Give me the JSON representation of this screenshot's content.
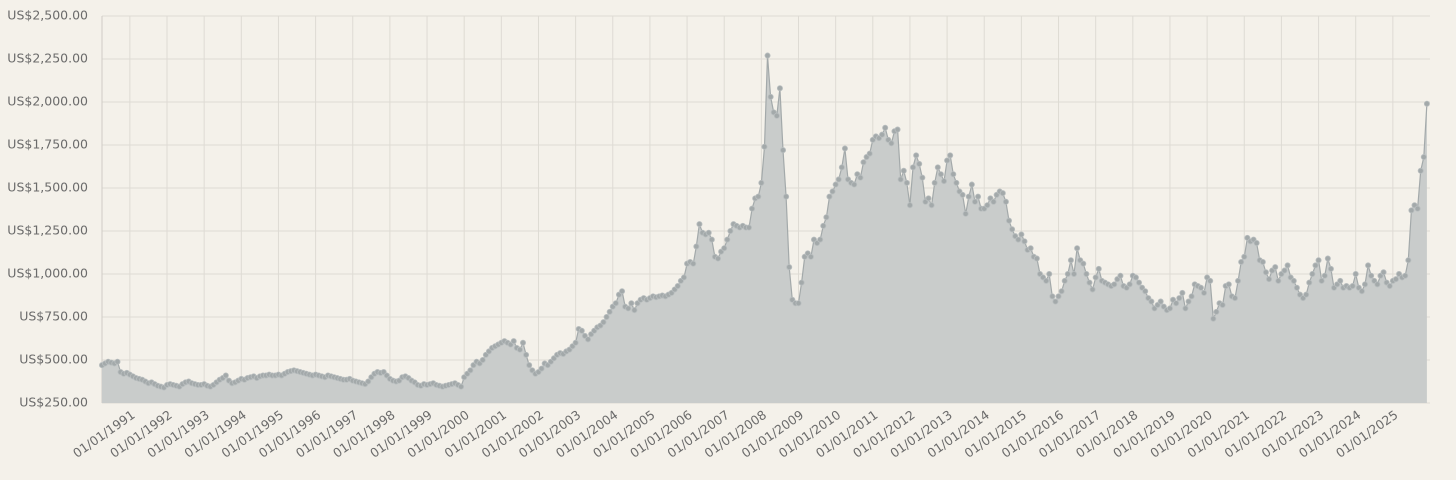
{
  "chart_data": {
    "type": "area",
    "x": [
      "01/04/1990",
      "01/05/1990",
      "01/06/1990",
      "01/07/1990",
      "01/08/1990",
      "01/09/1990",
      "01/10/1990",
      "01/11/1990",
      "01/12/1990",
      "01/01/1991",
      "01/02/1991",
      "01/03/1991",
      "01/04/1991",
      "01/05/1991",
      "01/06/1991",
      "01/07/1991",
      "01/08/1991",
      "01/09/1991",
      "01/10/1991",
      "01/11/1991",
      "01/12/1991",
      "01/01/1992",
      "01/02/1992",
      "01/03/1992",
      "01/04/1992",
      "01/05/1992",
      "01/06/1992",
      "01/07/1992",
      "01/08/1992",
      "01/09/1992",
      "01/10/1992",
      "01/11/1992",
      "01/12/1992",
      "01/01/1993",
      "01/02/1993",
      "01/03/1993",
      "01/04/1993",
      "01/05/1993",
      "01/06/1993",
      "01/07/1993",
      "01/08/1993",
      "01/09/1993",
      "01/10/1993",
      "01/11/1993",
      "01/12/1993",
      "01/01/1994",
      "01/02/1994",
      "01/03/1994",
      "01/04/1994",
      "01/05/1994",
      "01/06/1994",
      "01/07/1994",
      "01/08/1994",
      "01/09/1994",
      "01/10/1994",
      "01/11/1994",
      "01/12/1994",
      "01/01/1995",
      "01/02/1995",
      "01/03/1995",
      "01/04/1995",
      "01/05/1995",
      "01/06/1995",
      "01/07/1995",
      "01/08/1995",
      "01/09/1995",
      "01/10/1995",
      "01/11/1995",
      "01/12/1995",
      "01/01/1996",
      "01/02/1996",
      "01/03/1996",
      "01/04/1996",
      "01/05/1996",
      "01/06/1996",
      "01/07/1996",
      "01/08/1996",
      "01/09/1996",
      "01/10/1996",
      "01/11/1996",
      "01/12/1996",
      "01/01/1997",
      "01/02/1997",
      "01/03/1997",
      "01/04/1997",
      "01/05/1997",
      "01/06/1997",
      "01/07/1997",
      "01/08/1997",
      "01/09/1997",
      "01/10/1997",
      "01/11/1997",
      "01/12/1997",
      "01/01/1998",
      "01/02/1998",
      "01/03/1998",
      "01/04/1998",
      "01/05/1998",
      "01/06/1998",
      "01/07/1998",
      "01/08/1998",
      "01/09/1998",
      "01/10/1998",
      "01/11/1998",
      "01/12/1998",
      "01/01/1999",
      "01/02/1999",
      "01/03/1999",
      "01/04/1999",
      "01/05/1999",
      "01/06/1999",
      "01/07/1999",
      "01/08/1999",
      "01/09/1999",
      "01/10/1999",
      "01/11/1999",
      "01/12/1999",
      "01/01/2000",
      "01/02/2000",
      "01/03/2000",
      "01/04/2000",
      "01/05/2000",
      "01/06/2000",
      "01/07/2000",
      "01/08/2000",
      "01/09/2000",
      "01/10/2000",
      "01/11/2000",
      "01/12/2000",
      "01/01/2001",
      "01/02/2001",
      "01/03/2001",
      "01/04/2001",
      "01/05/2001",
      "01/06/2001",
      "01/07/2001",
      "01/08/2001",
      "01/09/2001",
      "01/10/2001",
      "01/11/2001",
      "01/12/2001",
      "01/01/2002",
      "01/02/2002",
      "01/03/2002",
      "01/04/2002",
      "01/05/2002",
      "01/06/2002",
      "01/07/2002",
      "01/08/2002",
      "01/09/2002",
      "01/10/2002",
      "01/11/2002",
      "01/12/2002",
      "01/01/2003",
      "01/02/2003",
      "01/03/2003",
      "01/04/2003",
      "01/05/2003",
      "01/06/2003",
      "01/07/2003",
      "01/08/2003",
      "01/09/2003",
      "01/10/2003",
      "01/11/2003",
      "01/12/2003",
      "01/01/2004",
      "01/02/2004",
      "01/03/2004",
      "01/04/2004",
      "01/05/2004",
      "01/06/2004",
      "01/07/2004",
      "01/08/2004",
      "01/09/2004",
      "01/10/2004",
      "01/11/2004",
      "01/12/2004",
      "01/01/2005",
      "01/02/2005",
      "01/03/2005",
      "01/04/2005",
      "01/05/2005",
      "01/06/2005",
      "01/07/2005",
      "01/08/2005",
      "01/09/2005",
      "01/10/2005",
      "01/11/2005",
      "01/12/2005",
      "01/01/2006",
      "01/02/2006",
      "01/03/2006",
      "01/04/2006",
      "01/05/2006",
      "01/06/2006",
      "01/07/2006",
      "01/08/2006",
      "01/09/2006",
      "01/10/2006",
      "01/11/2006",
      "01/12/2006",
      "01/01/2007",
      "01/02/2007",
      "01/03/2007",
      "01/04/2007",
      "01/05/2007",
      "01/06/2007",
      "01/07/2007",
      "01/08/2007",
      "01/09/2007",
      "01/10/2007",
      "01/11/2007",
      "01/12/2007",
      "01/01/2008",
      "01/02/2008",
      "01/03/2008",
      "01/04/2008",
      "01/05/2008",
      "01/06/2008",
      "01/07/2008",
      "01/08/2008",
      "01/09/2008",
      "01/10/2008",
      "01/11/2008",
      "01/12/2008",
      "01/01/2009",
      "01/02/2009",
      "01/03/2009",
      "01/04/2009",
      "01/05/2009",
      "01/06/2009",
      "01/07/2009",
      "01/08/2009",
      "01/09/2009",
      "01/10/2009",
      "01/11/2009",
      "01/12/2009",
      "01/01/2010",
      "01/02/2010",
      "01/03/2010",
      "01/04/2010",
      "01/05/2010",
      "01/06/2010",
      "01/07/2010",
      "01/08/2010",
      "01/09/2010",
      "01/10/2010",
      "01/11/2010",
      "01/12/2010",
      "01/01/2011",
      "01/02/2011",
      "01/03/2011",
      "01/04/2011",
      "01/05/2011",
      "01/06/2011",
      "01/07/2011",
      "01/08/2011",
      "01/09/2011",
      "01/10/2011",
      "01/11/2011",
      "01/12/2011",
      "01/01/2012",
      "01/02/2012",
      "01/03/2012",
      "01/04/2012",
      "01/05/2012",
      "01/06/2012",
      "01/07/2012",
      "01/08/2012",
      "01/09/2012",
      "01/10/2012",
      "01/11/2012",
      "01/12/2012",
      "01/01/2013",
      "01/02/2013",
      "01/03/2013",
      "01/04/2013",
      "01/05/2013",
      "01/06/2013",
      "01/07/2013",
      "01/08/2013",
      "01/09/2013",
      "01/10/2013",
      "01/11/2013",
      "01/12/2013",
      "01/01/2014",
      "01/02/2014",
      "01/03/2014",
      "01/04/2014",
      "01/05/2014",
      "01/06/2014",
      "01/07/2014",
      "01/08/2014",
      "01/09/2014",
      "01/10/2014",
      "01/11/2014",
      "01/12/2014",
      "01/01/2015",
      "01/02/2015",
      "01/03/2015",
      "01/04/2015",
      "01/05/2015",
      "01/06/2015",
      "01/07/2015",
      "01/08/2015",
      "01/09/2015",
      "01/10/2015",
      "01/11/2015",
      "01/12/2015",
      "01/01/2016",
      "01/02/2016",
      "01/03/2016",
      "01/04/2016",
      "01/05/2016",
      "01/06/2016",
      "01/07/2016",
      "01/08/2016",
      "01/09/2016",
      "01/10/2016",
      "01/11/2016",
      "01/12/2016",
      "01/01/2017",
      "01/02/2017",
      "01/03/2017",
      "01/04/2017",
      "01/05/2017",
      "01/06/2017",
      "01/07/2017",
      "01/08/2017",
      "01/09/2017",
      "01/10/2017",
      "01/11/2017",
      "01/12/2017",
      "01/01/2018",
      "01/02/2018",
      "01/03/2018",
      "01/04/2018",
      "01/05/2018",
      "01/06/2018",
      "01/07/2018",
      "01/08/2018",
      "01/09/2018",
      "01/10/2018",
      "01/11/2018",
      "01/12/2018",
      "01/01/2019",
      "01/02/2019",
      "01/03/2019",
      "01/04/2019",
      "01/05/2019",
      "01/06/2019",
      "01/07/2019",
      "01/08/2019",
      "01/09/2019",
      "01/10/2019",
      "01/11/2019",
      "01/12/2019",
      "01/01/2020",
      "01/02/2020",
      "01/03/2020",
      "01/04/2020",
      "01/05/2020",
      "01/06/2020",
      "01/07/2020",
      "01/08/2020",
      "01/09/2020",
      "01/10/2020",
      "01/11/2020",
      "01/12/2020",
      "01/01/2021",
      "01/02/2021",
      "01/03/2021",
      "01/04/2021",
      "01/05/2021",
      "01/06/2021",
      "01/07/2021",
      "01/08/2021",
      "01/09/2021",
      "01/10/2021",
      "01/11/2021",
      "01/12/2021",
      "01/01/2022",
      "01/02/2022",
      "01/03/2022",
      "01/04/2022",
      "01/05/2022",
      "01/06/2022",
      "01/07/2022",
      "01/08/2022",
      "01/09/2022",
      "01/10/2022",
      "01/11/2022",
      "01/12/2022",
      "01/01/2023",
      "01/02/2023",
      "01/03/2023",
      "01/04/2023",
      "01/05/2023",
      "01/06/2023",
      "01/07/2023",
      "01/08/2023",
      "01/09/2023",
      "01/10/2023",
      "01/11/2023",
      "01/12/2023",
      "01/01/2024",
      "01/02/2024",
      "01/03/2024",
      "01/04/2024",
      "01/05/2024",
      "01/06/2024",
      "01/07/2024",
      "01/08/2024",
      "01/09/2024",
      "01/10/2024",
      "01/11/2024",
      "01/12/2024",
      "01/01/2025",
      "01/02/2025",
      "01/03/2025",
      "01/04/2025",
      "01/05/2025",
      "01/06/2025",
      "01/07/2025",
      "01/08/2025",
      "01/09/2025",
      "01/10/2025",
      "01/11/2025",
      "01/12/2025"
    ],
    "values": [
      470,
      480,
      490,
      485,
      480,
      490,
      430,
      420,
      425,
      415,
      405,
      395,
      390,
      385,
      375,
      365,
      370,
      360,
      350,
      345,
      340,
      355,
      360,
      355,
      350,
      345,
      360,
      370,
      375,
      365,
      360,
      355,
      355,
      360,
      350,
      345,
      355,
      370,
      385,
      395,
      410,
      380,
      365,
      370,
      380,
      390,
      385,
      395,
      400,
      405,
      395,
      405,
      410,
      410,
      415,
      410,
      410,
      415,
      410,
      420,
      430,
      435,
      440,
      435,
      430,
      425,
      420,
      415,
      410,
      415,
      410,
      405,
      400,
      410,
      405,
      400,
      395,
      390,
      385,
      385,
      390,
      380,
      375,
      370,
      365,
      360,
      375,
      400,
      420,
      430,
      425,
      430,
      410,
      390,
      380,
      375,
      380,
      400,
      405,
      395,
      380,
      370,
      355,
      350,
      360,
      355,
      360,
      365,
      355,
      350,
      345,
      350,
      355,
      360,
      365,
      355,
      345,
      400,
      420,
      440,
      470,
      490,
      480,
      500,
      530,
      550,
      570,
      580,
      590,
      600,
      610,
      600,
      590,
      610,
      570,
      560,
      600,
      530,
      470,
      440,
      420,
      430,
      450,
      480,
      470,
      490,
      510,
      530,
      540,
      535,
      550,
      560,
      580,
      600,
      680,
      670,
      640,
      620,
      650,
      670,
      690,
      700,
      720,
      750,
      780,
      810,
      830,
      880,
      900,
      810,
      800,
      830,
      790,
      830,
      850,
      860,
      850,
      860,
      870,
      865,
      870,
      875,
      870,
      880,
      890,
      910,
      930,
      960,
      980,
      1060,
      1070,
      1060,
      1160,
      1290,
      1240,
      1230,
      1240,
      1200,
      1100,
      1090,
      1130,
      1150,
      1200,
      1250,
      1290,
      1280,
      1270,
      1280,
      1270,
      1270,
      1380,
      1440,
      1450,
      1530,
      1740,
      2270,
      2030,
      1940,
      1920,
      2080,
      1720,
      1450,
      1040,
      850,
      830,
      830,
      950,
      1100,
      1120,
      1100,
      1200,
      1180,
      1200,
      1280,
      1330,
      1450,
      1480,
      1520,
      1550,
      1620,
      1730,
      1550,
      1530,
      1520,
      1580,
      1560,
      1650,
      1680,
      1700,
      1780,
      1800,
      1790,
      1810,
      1850,
      1780,
      1760,
      1830,
      1840,
      1550,
      1600,
      1530,
      1400,
      1620,
      1690,
      1640,
      1560,
      1420,
      1440,
      1400,
      1530,
      1620,
      1580,
      1540,
      1660,
      1690,
      1580,
      1530,
      1480,
      1460,
      1350,
      1450,
      1520,
      1420,
      1450,
      1380,
      1380,
      1400,
      1440,
      1420,
      1460,
      1480,
      1470,
      1420,
      1310,
      1260,
      1220,
      1200,
      1230,
      1190,
      1140,
      1150,
      1100,
      1090,
      1000,
      980,
      960,
      1000,
      870,
      840,
      870,
      900,
      960,
      1000,
      1080,
      1000,
      1150,
      1080,
      1060,
      1000,
      950,
      910,
      980,
      1030,
      960,
      950,
      940,
      930,
      940,
      970,
      990,
      930,
      920,
      940,
      990,
      980,
      950,
      920,
      900,
      860,
      840,
      800,
      820,
      840,
      810,
      790,
      800,
      850,
      830,
      860,
      890,
      800,
      840,
      870,
      940,
      930,
      920,
      890,
      980,
      960,
      740,
      780,
      830,
      820,
      930,
      940,
      870,
      860,
      960,
      1070,
      1100,
      1210,
      1190,
      1200,
      1180,
      1080,
      1070,
      1010,
      970,
      1020,
      1040,
      960,
      1000,
      1020,
      1050,
      980,
      960,
      920,
      880,
      860,
      880,
      950,
      1000,
      1050,
      1080,
      960,
      990,
      1090,
      1030,
      920,
      940,
      960,
      920,
      930,
      920,
      930,
      1000,
      920,
      900,
      940,
      1050,
      990,
      960,
      940,
      990,
      1010,
      950,
      930,
      960,
      970,
      1000,
      980,
      990,
      1080,
      1370,
      1400,
      1380,
      1600,
      1680,
      1990
    ],
    "color": "#a3a9aa",
    "area_color": "#c9cccb",
    "xlim": [
      "01/04/1990",
      "01/01/2026"
    ],
    "xticks": [
      "01/01/1991",
      "01/01/1992",
      "01/01/1993",
      "01/01/1994",
      "01/01/1995",
      "01/01/1996",
      "01/01/1997",
      "01/01/1998",
      "01/01/1999",
      "01/01/2000",
      "01/01/2001",
      "01/01/2002",
      "01/01/2003",
      "01/01/2004",
      "01/01/2005",
      "01/01/2006",
      "01/01/2007",
      "01/01/2008",
      "01/01/2009",
      "01/01/2010",
      "01/01/2011",
      "01/01/2012",
      "01/01/2013",
      "01/01/2014",
      "01/01/2015",
      "01/01/2016",
      "01/01/2017",
      "01/01/2018",
      "01/01/2019",
      "01/01/2020",
      "01/01/2021",
      "01/01/2022",
      "01/01/2023",
      "01/01/2024",
      "01/01/2025"
    ],
    "ylim": [
      250,
      2500
    ],
    "yticks": [
      {
        "value": 250,
        "label": "US$250.00"
      },
      {
        "value": 500,
        "label": "US$500.00"
      },
      {
        "value": 750,
        "label": "US$750.00"
      },
      {
        "value": 1000,
        "label": "US$1,000.00"
      },
      {
        "value": 1250,
        "label": "US$1,250.00"
      },
      {
        "value": 1500,
        "label": "US$1,500.00"
      },
      {
        "value": 1750,
        "label": "US$1,750.00"
      },
      {
        "value": 2000,
        "label": "US$2,000.00"
      },
      {
        "value": 2250,
        "label": "US$2,250.00"
      },
      {
        "value": 2500,
        "label": "US$2,500.00"
      }
    ],
    "grid": true
  }
}
